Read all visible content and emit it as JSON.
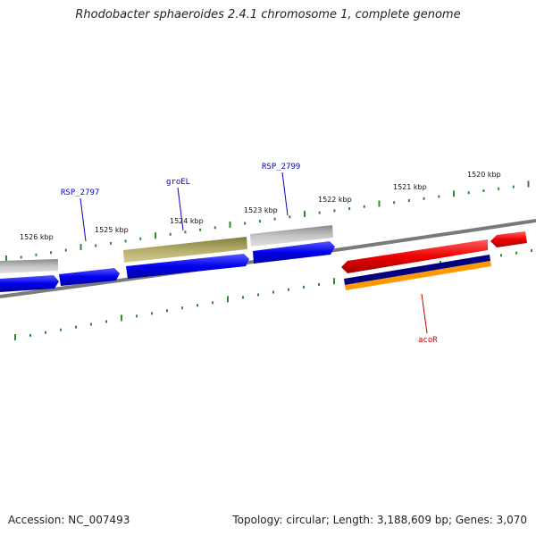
{
  "title": "Rhodobacter sphaeroides 2.4.1 chromosome 1, complete genome",
  "footer": {
    "accession": "Accession: NC_007493",
    "summary": "Topology: circular; Length: 3,188,609 bp; Genes: 3,070"
  },
  "ruler": {
    "labels": [
      "1526 kbp",
      "1525 kbp",
      "1524 kbp",
      "1523 kbp",
      "1522 kbp",
      "1521 kbp",
      "1520 kbp"
    ]
  },
  "gene_labels": [
    {
      "name": "RSP_2797",
      "color": "#0000cc"
    },
    {
      "name": "groEL",
      "color": "#0000cc"
    },
    {
      "name": "RSP_2799",
      "color": "#0000cc"
    },
    {
      "name": "acoR",
      "color": "#cc0000"
    }
  ],
  "colors": {
    "backbone": "#808080",
    "tick": "#2e8b2e",
    "blue_gene": "#0000ee",
    "red_gene": "#ee0000",
    "grey_gene": "#bdbdbd",
    "khaki_gene": "#b5ad6a",
    "navy_band": "#000080",
    "orange_band": "#ff9900"
  }
}
